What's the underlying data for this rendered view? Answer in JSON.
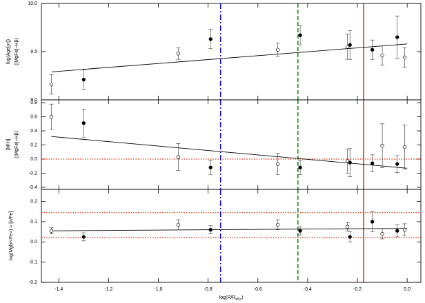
{
  "chart_data": [
    {
      "type": "scatter",
      "ylabel": [
        "log(Age[yr])",
        "([MgFe]−Hβ)"
      ],
      "xlim": [
        -1.47,
        0.055
      ],
      "xticks": [
        -1.4,
        -1.2,
        {
          "value": -1.0,
          "label": "-1.0"
        },
        -0.8,
        -0.6,
        -0.4,
        -0.2,
        {
          "value": 0.0,
          "label": "0.0"
        }
      ],
      "ylim": [
        9.0,
        10.0
      ],
      "yticks": [
        {
          "value": 9.0,
          "label": "9.0"
        },
        9.5,
        {
          "value": 10.0,
          "label": "10.0"
        }
      ],
      "x": [
        -1.43,
        -1.3,
        -0.92,
        -0.79,
        -0.52,
        -0.43,
        -0.24,
        -0.23,
        -0.14,
        -0.1,
        -0.04,
        -0.01
      ],
      "values": [
        9.16,
        9.21,
        9.48,
        9.63,
        9.52,
        9.67,
        9.55,
        9.57,
        9.52,
        9.46,
        9.65,
        9.44
      ],
      "errors": [
        0.1,
        0.1,
        0.06,
        0.1,
        0.07,
        0.1,
        0.13,
        0.15,
        0.1,
        0.1,
        0.22,
        0.1
      ],
      "markers": [
        "open",
        "filled",
        "open",
        "filled",
        "open",
        "filled",
        "open",
        "filled",
        "filled",
        "open",
        "filled",
        "open"
      ],
      "fit": {
        "x": [
          -1.43,
          0.0
        ],
        "values": [
          9.29,
          9.58
        ]
      },
      "vlines": [
        {
          "x": -0.75,
          "color": "#1010d0",
          "style": "dashdot"
        },
        {
          "x": -0.439,
          "color": "#189018",
          "style": "dash"
        },
        {
          "x": -0.175,
          "color": "#e03010",
          "style": "solid"
        }
      ]
    },
    {
      "type": "scatter",
      "ylabel": [
        "[M/H]",
        "([MgFe]−Hβ)"
      ],
      "xlim": [
        -1.47,
        0.055
      ],
      "xticks": [
        -1.4,
        -1.2,
        {
          "value": -1.0,
          "label": "-1.0"
        },
        -0.8,
        -0.6,
        -0.4,
        -0.2,
        {
          "value": 0.0,
          "label": "0.0"
        }
      ],
      "ylim": [
        -0.43,
        0.84
      ],
      "yticks": [
        -0.4,
        -0.2,
        {
          "value": 0.0,
          "label": "0.0"
        },
        0.2,
        0.4,
        0.6,
        0.8
      ],
      "x": [
        -1.43,
        -1.3,
        -0.92,
        -0.79,
        -0.52,
        -0.43,
        -0.24,
        -0.23,
        -0.14,
        -0.1,
        -0.04,
        -0.01
      ],
      "values": [
        0.6,
        0.51,
        0.03,
        -0.12,
        -0.07,
        -0.12,
        -0.03,
        -0.05,
        -0.06,
        0.19,
        -0.07,
        0.17
      ],
      "errors": [
        0.18,
        0.2,
        0.19,
        0.1,
        0.15,
        0.1,
        0.17,
        0.2,
        0.12,
        0.31,
        0.12,
        0.31
      ],
      "markers": [
        "open",
        "filled",
        "open",
        "filled",
        "open",
        "filled",
        "open",
        "filled",
        "filled",
        "open",
        "filled",
        "open"
      ],
      "fit": {
        "x": [
          -1.43,
          0.0
        ],
        "values": [
          0.32,
          -0.13
        ]
      },
      "hlines": [
        {
          "y": 0.0,
          "color": "#e03010"
        }
      ],
      "vlines": [
        {
          "x": -0.75,
          "color": "#1010d0",
          "style": "dashdot"
        },
        {
          "x": -0.439,
          "color": "#189018",
          "style": "dash"
        },
        {
          "x": -0.175,
          "color": "#e03010",
          "style": "solid"
        }
      ]
    },
    {
      "type": "scatter",
      "ylabel": [
        "log(Mgb/<Fe>) ≈ [α/Fe]"
      ],
      "xlabel": [
        "log(R/R",
        "eff,r",
        ")"
      ],
      "xlim": [
        -1.47,
        0.055
      ],
      "xticks": [
        -1.4,
        -1.2,
        {
          "value": -1.0,
          "label": "-1.0"
        },
        -0.8,
        -0.6,
        -0.4,
        -0.2,
        {
          "value": 0.0,
          "label": "0.0"
        }
      ],
      "ylim": [
        -0.2,
        0.26
      ],
      "yticks": [
        -0.2,
        -0.1,
        {
          "value": 0.0,
          "label": "0.0"
        },
        0.1,
        0.2
      ],
      "x": [
        -1.43,
        -1.3,
        -0.92,
        -0.79,
        -0.52,
        -0.43,
        -0.24,
        -0.23,
        -0.14,
        -0.1,
        -0.04,
        -0.01
      ],
      "values": [
        0.055,
        0.025,
        0.085,
        0.06,
        0.085,
        0.055,
        0.075,
        0.025,
        0.1,
        0.04,
        0.055,
        0.06
      ],
      "errors": [
        0.015,
        0.02,
        0.025,
        0.02,
        0.025,
        0.02,
        0.02,
        0.025,
        0.05,
        0.025,
        0.03,
        0.03
      ],
      "markers": [
        "open",
        "filled",
        "open",
        "filled",
        "open",
        "filled",
        "open",
        "filled",
        "filled",
        "open",
        "filled",
        "open"
      ],
      "fit": {
        "x": [
          -1.43,
          0.0
        ],
        "values": [
          0.055,
          0.067
        ]
      },
      "hlines": [
        {
          "y": 0.145,
          "color": "#e03010"
        },
        {
          "y": 0.022,
          "color": "#e03010"
        }
      ],
      "vlines": [
        {
          "x": -0.75,
          "color": "#1010d0",
          "style": "dashdot"
        },
        {
          "x": -0.439,
          "color": "#189018",
          "style": "dash"
        },
        {
          "x": -0.175,
          "color": "#e03010",
          "style": "solid"
        }
      ]
    }
  ]
}
